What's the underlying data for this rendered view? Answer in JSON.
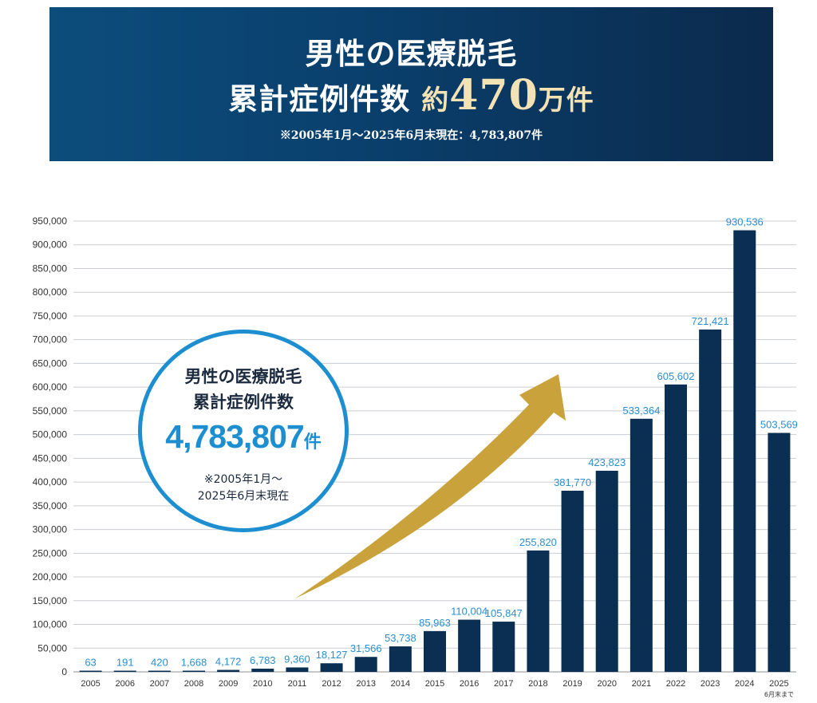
{
  "banner": {
    "line1": "男性の医療脱毛",
    "line2_prefix": "累計症例件数",
    "line2_about": "約",
    "line2_number": "470",
    "line2_unit": "万件",
    "note": "※2005年1月～2025年6月末現在：4,783,807件"
  },
  "badge": {
    "title_line1": "男性の医療脱毛",
    "title_line2": "累計症例件数",
    "total_number": "4,783,807",
    "total_unit": "件",
    "note_line1": "※2005年1月～",
    "note_line2": "2025年6月末現在"
  },
  "colors": {
    "banner_start": "#0c4d7c",
    "banner_end": "#0b2a4c",
    "bar": "#0b2f52",
    "data_label": "#2a8fcf",
    "badge_border": "#1d8fd1",
    "arrow": "#c9a23c",
    "gridline": "#c9cdd2"
  },
  "chart_data": {
    "type": "bar",
    "categories": [
      "2005",
      "2006",
      "2007",
      "2008",
      "2009",
      "2010",
      "2011",
      "2012",
      "2013",
      "2014",
      "2015",
      "2016",
      "2017",
      "2018",
      "2019",
      "2020",
      "2021",
      "2022",
      "2023",
      "2024",
      "2025"
    ],
    "category_subnote": {
      "2025": "6月末まで"
    },
    "values": [
      63,
      191,
      420,
      1668,
      4172,
      6783,
      9360,
      18127,
      31566,
      53738,
      85963,
      110004,
      105847,
      255820,
      381770,
      423823,
      533364,
      605602,
      721421,
      930536,
      503569
    ],
    "value_labels": [
      "63",
      "191",
      "420",
      "1,668",
      "4,172",
      "6,783",
      "9,360",
      "18,127",
      "31,566",
      "53,738",
      "85,963",
      "110,004",
      "105,847",
      "255,820",
      "381,770",
      "423,823",
      "533,364",
      "605,602",
      "721,421",
      "930,536",
      "503,569"
    ],
    "y_ticks": [
      0,
      50000,
      100000,
      150000,
      200000,
      250000,
      300000,
      350000,
      400000,
      450000,
      500000,
      550000,
      600000,
      650000,
      700000,
      750000,
      800000,
      850000,
      900000,
      950000
    ],
    "y_tick_labels": [
      "0",
      "50,000",
      "100,000",
      "150,000",
      "200,000",
      "250,000",
      "300,000",
      "350,000",
      "400,000",
      "450,000",
      "500,000",
      "550,000",
      "600,000",
      "650,000",
      "700,000",
      "750,000",
      "800,000",
      "850,000",
      "900,000",
      "950,000"
    ],
    "ylim": [
      0,
      950000
    ],
    "grid": true,
    "title": "",
    "xlabel": "",
    "ylabel": ""
  }
}
